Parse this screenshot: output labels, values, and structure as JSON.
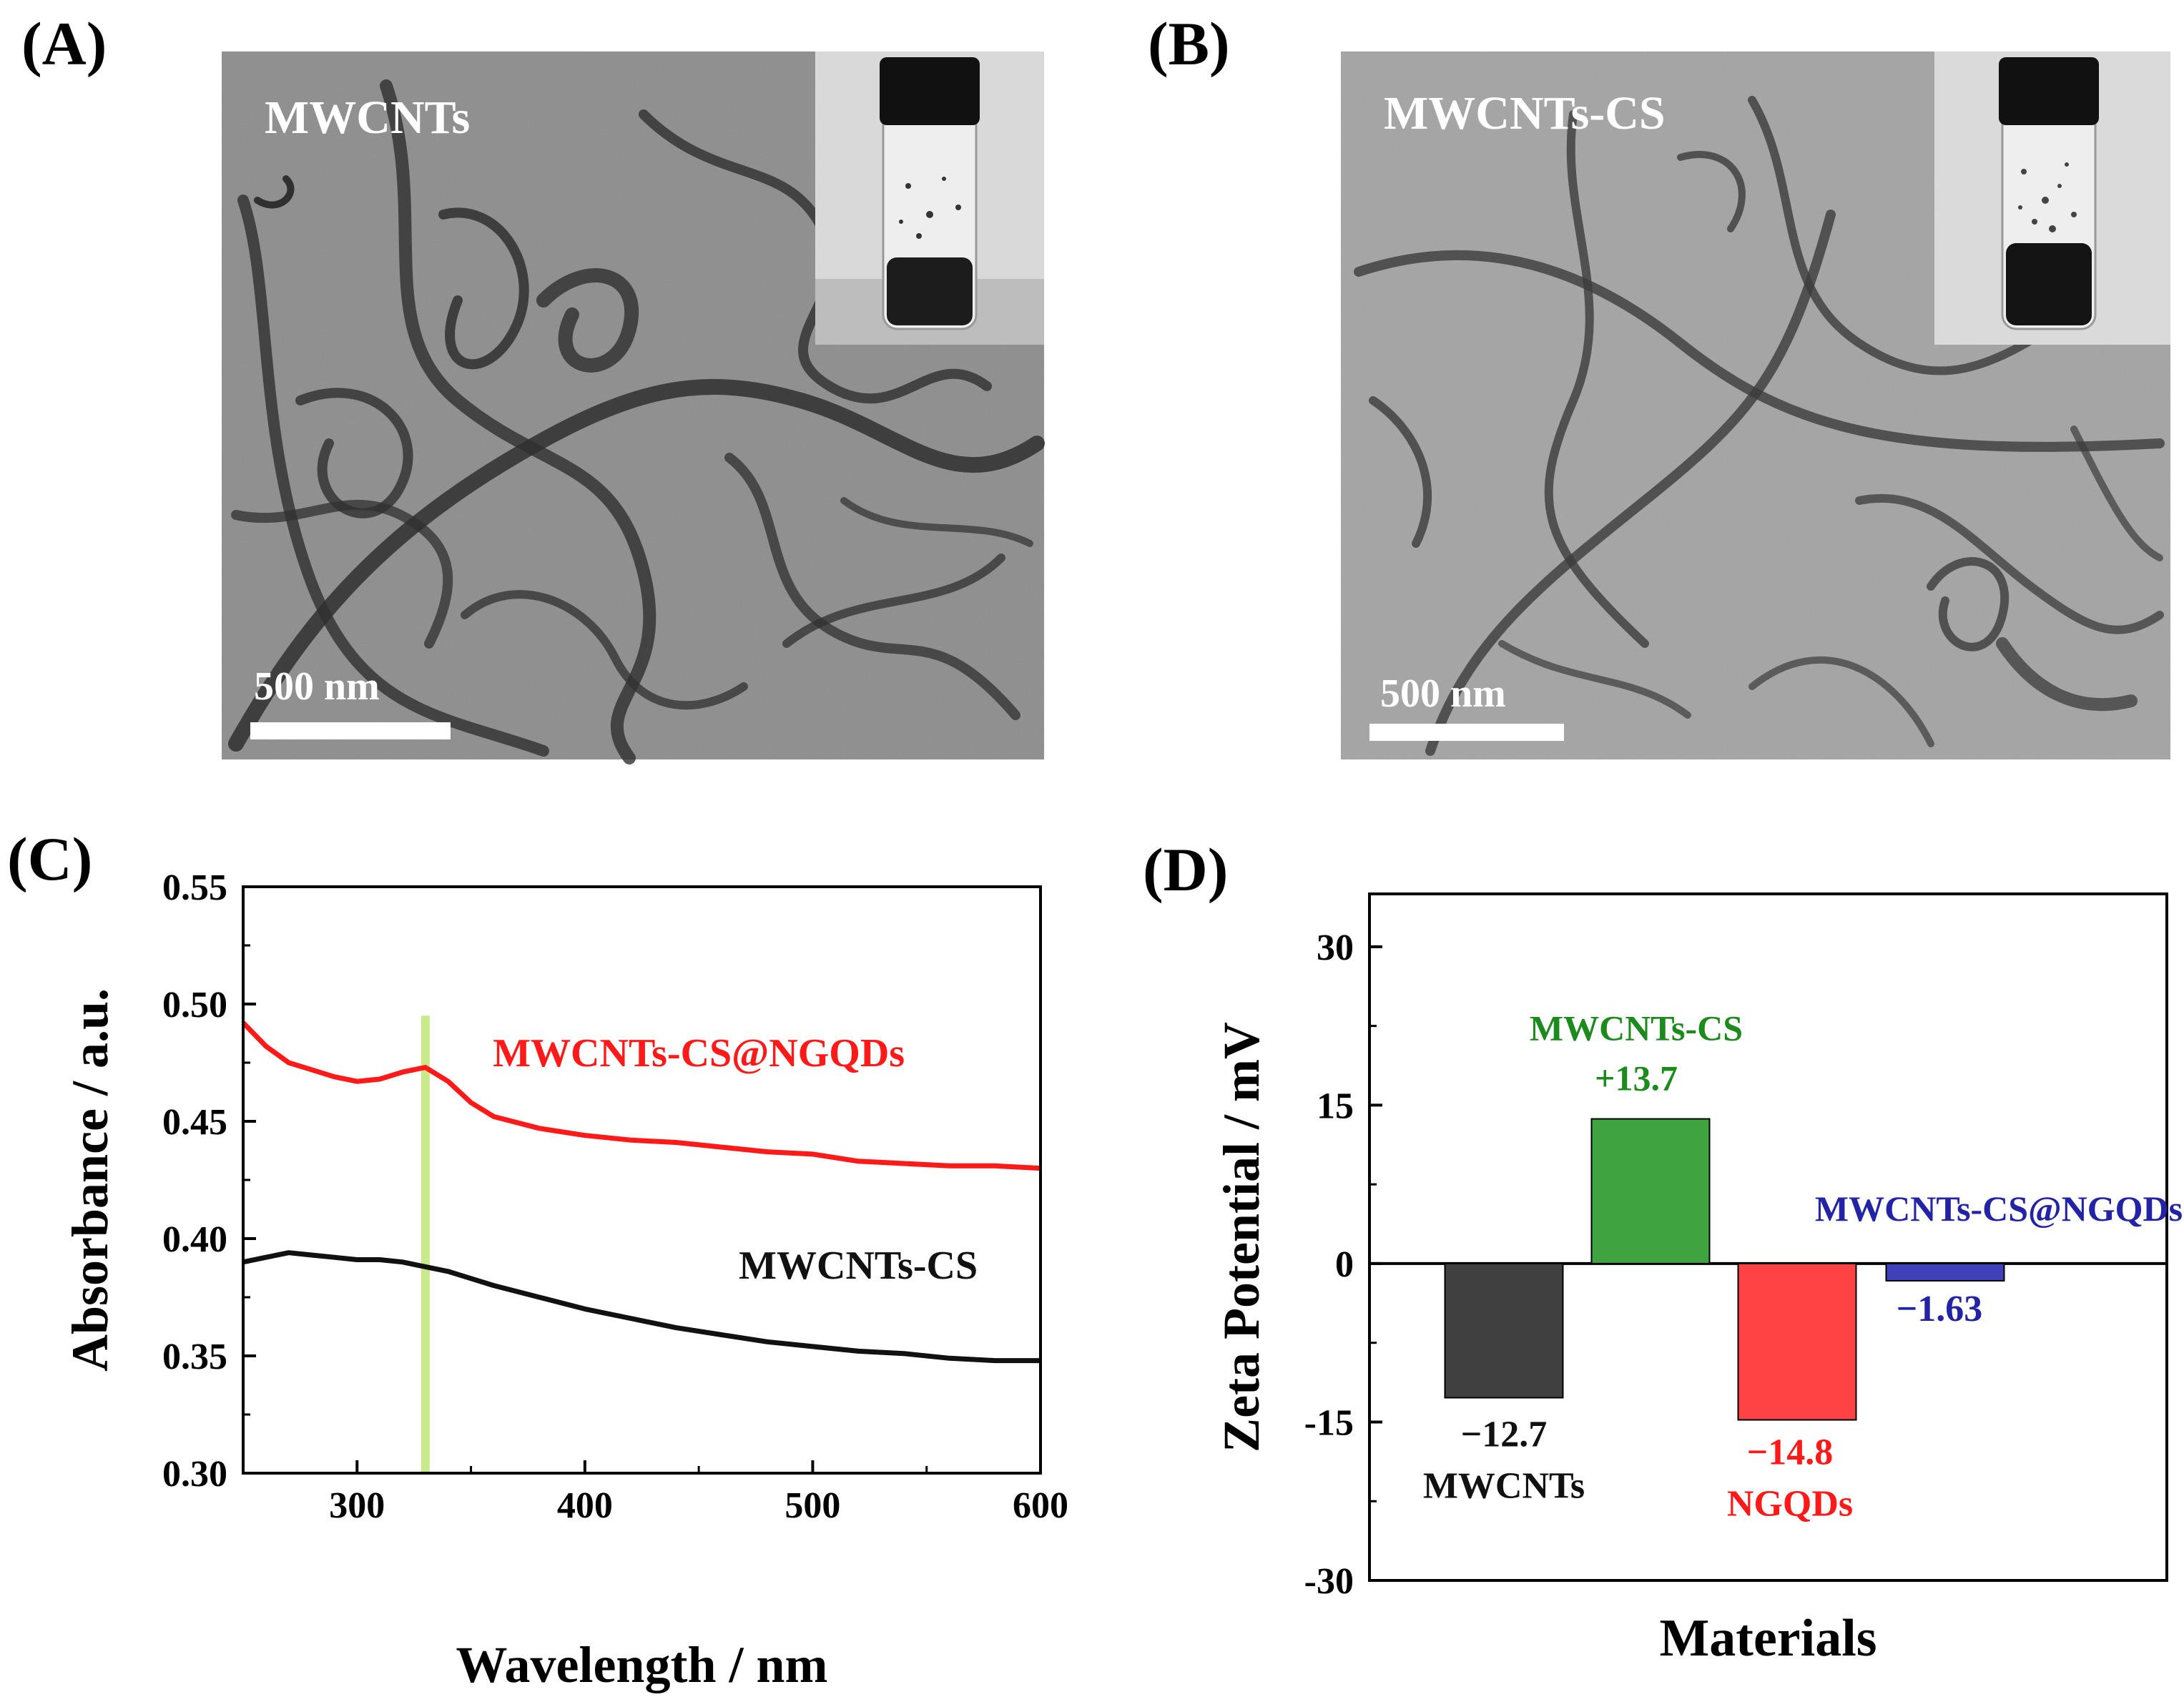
{
  "panels": {
    "A": {
      "label": "(A)",
      "image_title": "MWCNTs",
      "scale_bar": "500 nm"
    },
    "B": {
      "label": "(B)",
      "image_title": "MWCNTs-CS",
      "scale_bar": "500 nm"
    },
    "C": {
      "label": "(C)"
    },
    "D": {
      "label": "(D)"
    }
  },
  "colors": {
    "red": "#ff1a1a",
    "black": "#111111",
    "green_band": "#c8ea8a",
    "bar_dark": "#404040",
    "bar_green": "#3fa33f",
    "bar_red": "#ff4343",
    "bar_blue": "#4040b8",
    "label_green": "#1d8a1d",
    "label_red": "#ff1a1a",
    "label_blue": "#2323a6"
  },
  "chart_data": [
    {
      "type": "line",
      "panel": "C",
      "xlabel": "Wavelength / nm",
      "ylabel": "Absorbance / a.u.",
      "xlim": [
        250,
        600
      ],
      "ylim": [
        0.3,
        0.55
      ],
      "xticks": [
        "300",
        "400",
        "500",
        "600"
      ],
      "xtick_values": [
        300,
        400,
        500,
        600
      ],
      "yticks": [
        "0.30",
        "0.35",
        "0.40",
        "0.45",
        "0.50",
        "0.55"
      ],
      "ytick_values": [
        0.3,
        0.35,
        0.4,
        0.45,
        0.5,
        0.55
      ],
      "highlight_wavelength": 330,
      "series": [
        {
          "name": "MWCNTs-CS@NGQDs",
          "color": "#ff1a1a",
          "x": [
            250,
            260,
            270,
            280,
            290,
            300,
            310,
            320,
            330,
            340,
            350,
            360,
            380,
            400,
            420,
            440,
            460,
            480,
            500,
            520,
            540,
            560,
            580,
            600
          ],
          "y": [
            0.492,
            0.482,
            0.475,
            0.472,
            0.469,
            0.467,
            0.468,
            0.471,
            0.473,
            0.467,
            0.458,
            0.452,
            0.447,
            0.444,
            0.442,
            0.441,
            0.439,
            0.437,
            0.436,
            0.433,
            0.432,
            0.431,
            0.431,
            0.43
          ]
        },
        {
          "name": "MWCNTs-CS",
          "color": "#111111",
          "x": [
            250,
            260,
            270,
            280,
            290,
            300,
            310,
            320,
            330,
            340,
            350,
            360,
            380,
            400,
            420,
            440,
            460,
            480,
            500,
            520,
            540,
            560,
            580,
            600
          ],
          "y": [
            0.39,
            0.392,
            0.394,
            0.393,
            0.392,
            0.391,
            0.391,
            0.39,
            0.388,
            0.386,
            0.383,
            0.38,
            0.375,
            0.37,
            0.366,
            0.362,
            0.359,
            0.356,
            0.354,
            0.352,
            0.351,
            0.349,
            0.348,
            0.348
          ]
        }
      ],
      "annotations": [
        {
          "text": "MWCNTs-CS@NGQDs",
          "x": 450,
          "y": 0.4735,
          "color": "#ff1a1a"
        },
        {
          "text": "MWCNTs-CS",
          "x": 520,
          "y": 0.383,
          "color": "#111111"
        }
      ]
    },
    {
      "type": "bar",
      "panel": "D",
      "xlabel": "Materials",
      "ylabel": "Zeta Potential / mV",
      "ylim": [
        -30,
        35
      ],
      "yticks": [
        "-30",
        "-15",
        "0",
        "15",
        "30"
      ],
      "ytick_values": [
        -30,
        -15,
        0,
        15,
        30
      ],
      "categories": [
        "MWCNTs",
        "MWCNTs-CS",
        "NGQDs",
        "MWCNTs-CS@NGQDs"
      ],
      "values": [
        -12.7,
        13.7,
        -14.8,
        -1.63
      ],
      "value_labels": [
        "−12.7",
        "+13.7",
        "−14.8",
        "−1.63"
      ],
      "bar_colors": [
        "#404040",
        "#3fa33f",
        "#ff4343",
        "#4040b8"
      ],
      "label_colors": [
        "#111111",
        "#1d8a1d",
        "#ff1a1a",
        "#2323a6"
      ]
    }
  ]
}
